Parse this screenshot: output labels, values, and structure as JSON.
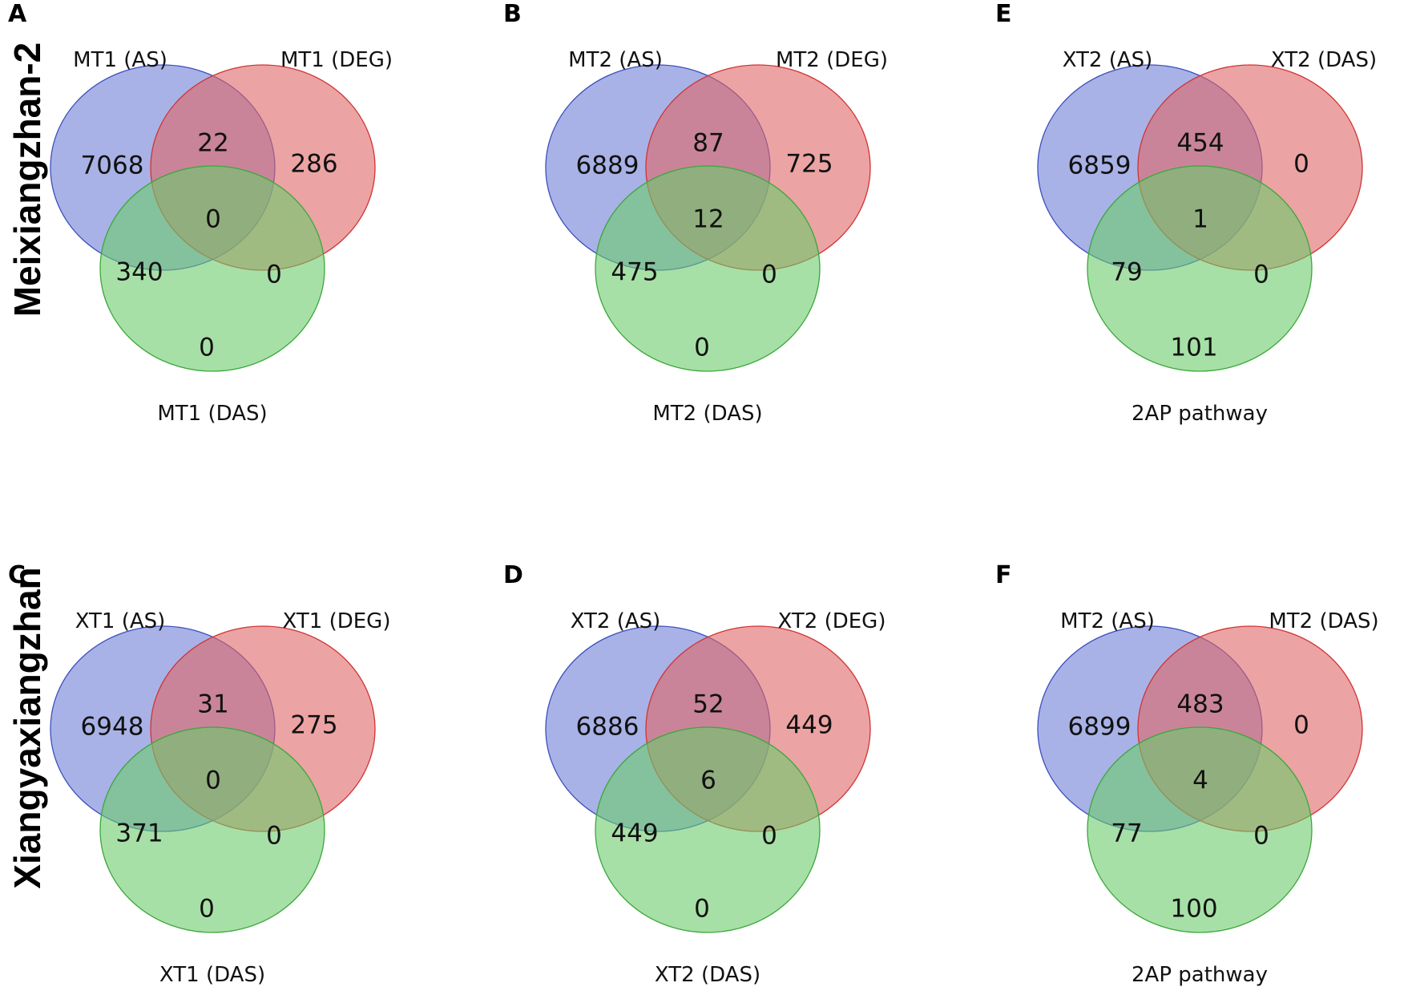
{
  "colors": {
    "set_a_fill": "#6f7fd6",
    "set_a_stroke": "#3c4fbf",
    "set_b_fill": "#e06565",
    "set_b_stroke": "#d03434",
    "set_c_fill": "#6ccb6c",
    "set_c_stroke": "#3aa83a"
  },
  "row_labels": [
    "Meixiangzhan-2",
    "Xiangyaxiangzhan"
  ],
  "panels": [
    {
      "letter": "A",
      "set_labels": [
        "MT1 (AS)",
        "MT1 (DEG)",
        "MT1 (DAS)"
      ],
      "counts": {
        "a_only": "7068",
        "b_only": "286",
        "c_only": "0",
        "ab": "22",
        "ac": "340",
        "bc": "0",
        "abc": "0"
      }
    },
    {
      "letter": "B",
      "set_labels": [
        "MT2 (AS)",
        "MT2 (DEG)",
        "MT2 (DAS)"
      ],
      "counts": {
        "a_only": "6889",
        "b_only": "725",
        "c_only": "0",
        "ab": "87",
        "ac": "475",
        "bc": "0",
        "abc": "12"
      }
    },
    {
      "letter": "E",
      "set_labels": [
        "XT2 (AS)",
        "XT2 (DAS)",
        "2AP pathway"
      ],
      "counts": {
        "a_only": "6859",
        "b_only": "0",
        "c_only": "101",
        "ab": "454",
        "ac": "79",
        "bc": "0",
        "abc": "1"
      }
    },
    {
      "letter": "C",
      "set_labels": [
        "XT1 (AS)",
        "XT1 (DEG)",
        "XT1 (DAS)"
      ],
      "counts": {
        "a_only": "6948",
        "b_only": "275",
        "c_only": "0",
        "ab": "31",
        "ac": "371",
        "bc": "0",
        "abc": "0"
      }
    },
    {
      "letter": "D",
      "set_labels": [
        "XT2 (AS)",
        "XT2 (DEG)",
        "XT2 (DAS)"
      ],
      "counts": {
        "a_only": "6886",
        "b_only": "449",
        "c_only": "0",
        "ab": "52",
        "ac": "449",
        "bc": "0",
        "abc": "6"
      }
    },
    {
      "letter": "F",
      "set_labels": [
        "MT2 (AS)",
        "MT2 (DAS)",
        "2AP pathway"
      ],
      "counts": {
        "a_only": "6899",
        "b_only": "0",
        "c_only": "100",
        "ab": "483",
        "ac": "77",
        "bc": "0",
        "abc": "4"
      }
    }
  ]
}
